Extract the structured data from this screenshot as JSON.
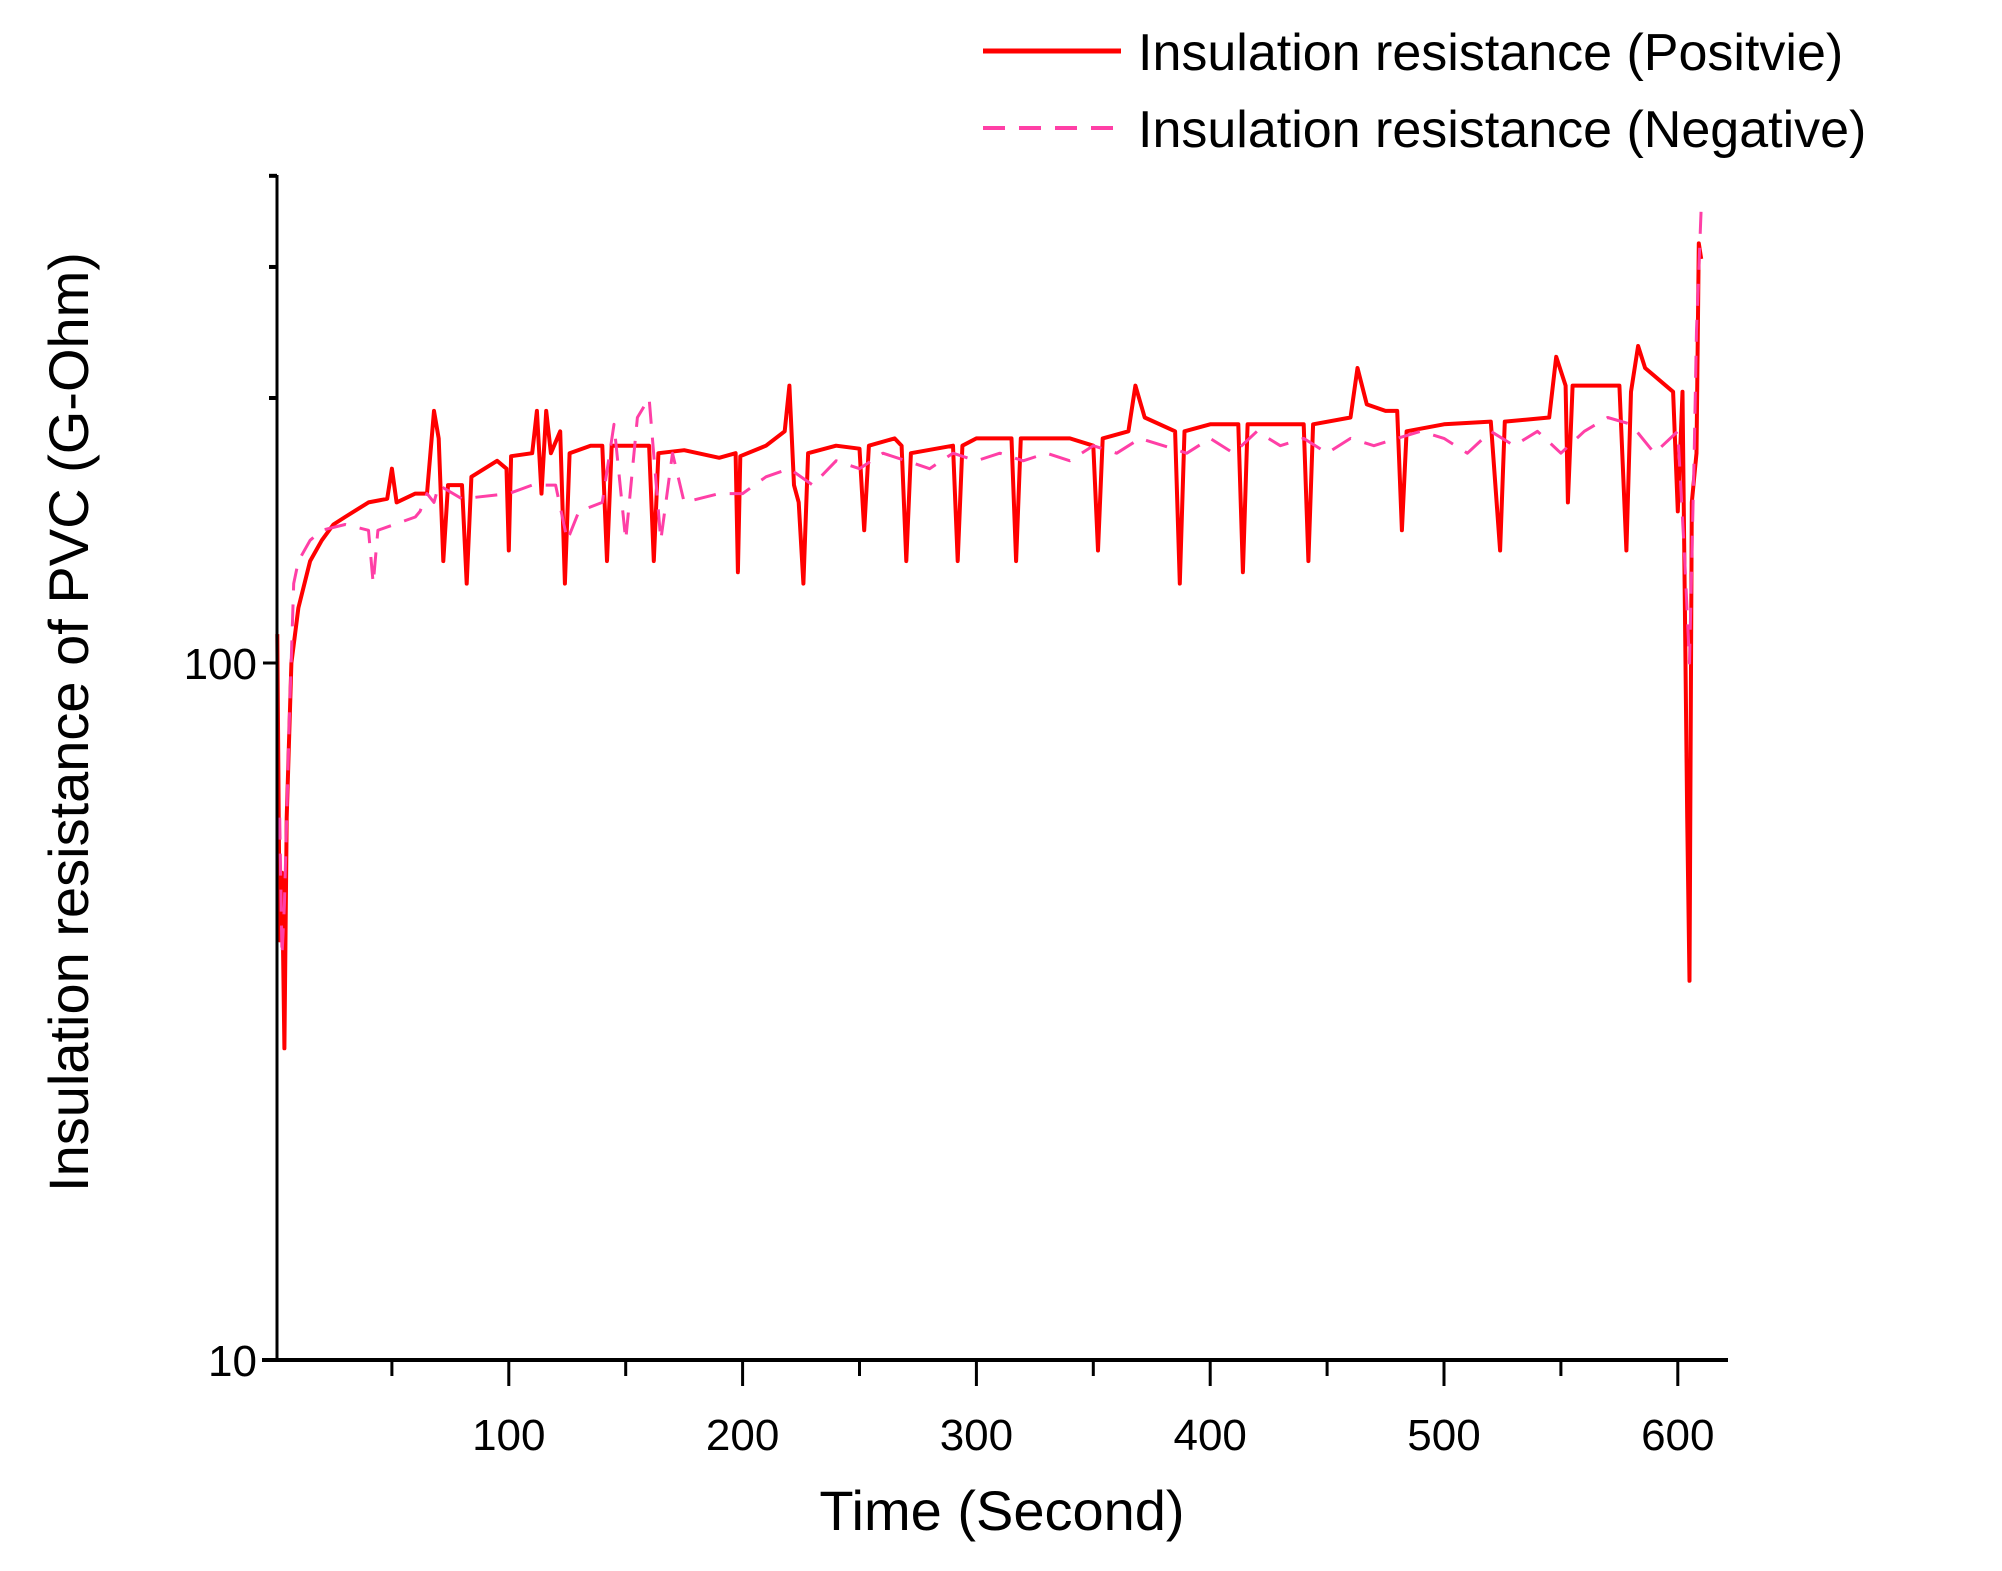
{
  "chart_data": {
    "type": "line",
    "title": "",
    "xlabel": "Time (Second)",
    "ylabel": "Insulation resistance of PVC (G-Ohm)",
    "xlim": [
      0,
      620
    ],
    "ylim": [
      10,
      500
    ],
    "yscale": "log",
    "xticks": [
      100,
      200,
      300,
      400,
      500,
      600
    ],
    "xtick_labels": [
      "100",
      "200",
      "300",
      "400",
      "500",
      "600"
    ],
    "xminor_ticks": [
      50,
      150,
      250,
      350,
      450,
      550
    ],
    "yticks": [
      10,
      100
    ],
    "ytick_labels": [
      "10",
      "100"
    ],
    "yminor_ticks": [
      240,
      370,
      500
    ],
    "grid": false,
    "legend_position": "top-right",
    "series": [
      {
        "name": "Insulation resistance (Positvie)",
        "color": "#ff0000",
        "style": "solid",
        "points": [
          [
            1,
            110
          ],
          [
            2,
            40
          ],
          [
            3,
            50
          ],
          [
            4,
            28
          ],
          [
            5,
            60
          ],
          [
            7,
            100
          ],
          [
            10,
            120
          ],
          [
            15,
            140
          ],
          [
            20,
            150
          ],
          [
            25,
            158
          ],
          [
            30,
            162
          ],
          [
            40,
            170
          ],
          [
            48,
            172
          ],
          [
            50,
            190
          ],
          [
            52,
            170
          ],
          [
            60,
            175
          ],
          [
            65,
            175
          ],
          [
            68,
            230
          ],
          [
            70,
            210
          ],
          [
            72,
            140
          ],
          [
            74,
            180
          ],
          [
            80,
            180
          ],
          [
            82,
            130
          ],
          [
            84,
            185
          ],
          [
            95,
            195
          ],
          [
            99,
            190
          ],
          [
            100,
            145
          ],
          [
            101,
            198
          ],
          [
            110,
            200
          ],
          [
            112,
            230
          ],
          [
            114,
            175
          ],
          [
            116,
            230
          ],
          [
            118,
            200
          ],
          [
            122,
            215
          ],
          [
            124,
            130
          ],
          [
            126,
            200
          ],
          [
            135,
            205
          ],
          [
            140,
            205
          ],
          [
            142,
            140
          ],
          [
            144,
            205
          ],
          [
            160,
            205
          ],
          [
            162,
            140
          ],
          [
            164,
            200
          ],
          [
            175,
            202
          ],
          [
            190,
            197
          ],
          [
            197,
            200
          ],
          [
            198,
            135
          ],
          [
            199,
            198
          ],
          [
            210,
            205
          ],
          [
            218,
            215
          ],
          [
            220,
            250
          ],
          [
            222,
            180
          ],
          [
            224,
            170
          ],
          [
            226,
            130
          ],
          [
            228,
            200
          ],
          [
            240,
            205
          ],
          [
            250,
            203
          ],
          [
            252,
            155
          ],
          [
            254,
            205
          ],
          [
            265,
            210
          ],
          [
            268,
            205
          ],
          [
            270,
            140
          ],
          [
            272,
            200
          ],
          [
            290,
            205
          ],
          [
            292,
            140
          ],
          [
            294,
            205
          ],
          [
            300,
            210
          ],
          [
            315,
            210
          ],
          [
            317,
            140
          ],
          [
            319,
            210
          ],
          [
            340,
            210
          ],
          [
            350,
            205
          ],
          [
            352,
            145
          ],
          [
            354,
            210
          ],
          [
            365,
            215
          ],
          [
            368,
            250
          ],
          [
            372,
            225
          ],
          [
            385,
            215
          ],
          [
            387,
            130
          ],
          [
            389,
            215
          ],
          [
            400,
            220
          ],
          [
            412,
            220
          ],
          [
            414,
            135
          ],
          [
            416,
            220
          ],
          [
            440,
            220
          ],
          [
            442,
            140
          ],
          [
            444,
            220
          ],
          [
            460,
            225
          ],
          [
            463,
            265
          ],
          [
            467,
            235
          ],
          [
            475,
            230
          ],
          [
            480,
            230
          ],
          [
            482,
            155
          ],
          [
            484,
            215
          ],
          [
            500,
            220
          ],
          [
            520,
            222
          ],
          [
            524,
            145
          ],
          [
            526,
            222
          ],
          [
            545,
            225
          ],
          [
            548,
            275
          ],
          [
            552,
            250
          ],
          [
            553,
            170
          ],
          [
            555,
            250
          ],
          [
            575,
            250
          ],
          [
            578,
            145
          ],
          [
            580,
            245
          ],
          [
            583,
            285
          ],
          [
            586,
            265
          ],
          [
            598,
            245
          ],
          [
            600,
            165
          ],
          [
            602,
            245
          ],
          [
            604,
            60
          ],
          [
            605,
            35
          ],
          [
            606,
            170
          ],
          [
            608,
            200
          ],
          [
            609,
            400
          ],
          [
            610,
            380
          ]
        ]
      },
      {
        "name": "Insulation resistance (Negative)",
        "color": "#ff3fa6",
        "style": "dashed",
        "points": [
          [
            2,
            60
          ],
          [
            3,
            38
          ],
          [
            4,
            45
          ],
          [
            6,
            80
          ],
          [
            8,
            130
          ],
          [
            10,
            140
          ],
          [
            15,
            150
          ],
          [
            20,
            155
          ],
          [
            30,
            158
          ],
          [
            40,
            155
          ],
          [
            42,
            130
          ],
          [
            44,
            155
          ],
          [
            60,
            162
          ],
          [
            62,
            165
          ],
          [
            65,
            175
          ],
          [
            68,
            170
          ],
          [
            70,
            180
          ],
          [
            80,
            172
          ],
          [
            100,
            175
          ],
          [
            110,
            180
          ],
          [
            120,
            180
          ],
          [
            125,
            150
          ],
          [
            130,
            165
          ],
          [
            140,
            170
          ],
          [
            145,
            220
          ],
          [
            150,
            150
          ],
          [
            155,
            225
          ],
          [
            160,
            240
          ],
          [
            165,
            150
          ],
          [
            170,
            200
          ],
          [
            175,
            170
          ],
          [
            190,
            175
          ],
          [
            200,
            175
          ],
          [
            210,
            185
          ],
          [
            220,
            190
          ],
          [
            230,
            180
          ],
          [
            240,
            195
          ],
          [
            250,
            190
          ],
          [
            260,
            200
          ],
          [
            270,
            195
          ],
          [
            280,
            190
          ],
          [
            290,
            200
          ],
          [
            300,
            195
          ],
          [
            310,
            200
          ],
          [
            320,
            195
          ],
          [
            330,
            200
          ],
          [
            340,
            195
          ],
          [
            350,
            205
          ],
          [
            360,
            200
          ],
          [
            370,
            210
          ],
          [
            380,
            205
          ],
          [
            390,
            200
          ],
          [
            400,
            210
          ],
          [
            410,
            200
          ],
          [
            420,
            215
          ],
          [
            430,
            205
          ],
          [
            440,
            210
          ],
          [
            450,
            200
          ],
          [
            460,
            210
          ],
          [
            470,
            205
          ],
          [
            480,
            210
          ],
          [
            490,
            215
          ],
          [
            500,
            210
          ],
          [
            510,
            200
          ],
          [
            520,
            215
          ],
          [
            530,
            205
          ],
          [
            540,
            215
          ],
          [
            550,
            200
          ],
          [
            560,
            215
          ],
          [
            570,
            225
          ],
          [
            580,
            220
          ],
          [
            590,
            200
          ],
          [
            600,
            215
          ],
          [
            603,
            140
          ],
          [
            605,
            100
          ],
          [
            607,
            200
          ],
          [
            608,
            300
          ],
          [
            610,
            450
          ]
        ]
      }
    ]
  }
}
